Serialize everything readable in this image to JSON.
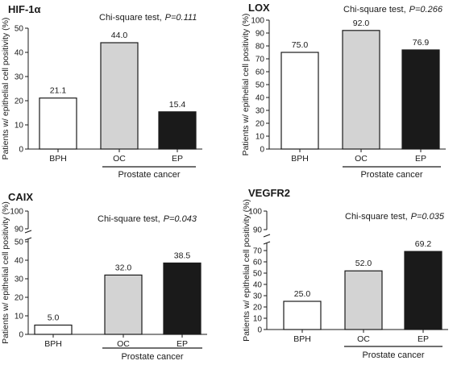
{
  "chart_data": [
    {
      "type": "bar",
      "title": "HIF-1α",
      "ylabel": "Patients w/ epithelial cell positivity (%)",
      "test_label": "Chi-square test,",
      "p_label": "P=0.111",
      "categories": [
        "BPH",
        "OC",
        "EP"
      ],
      "values": [
        21.1,
        44.0,
        15.4
      ],
      "value_labels": [
        "21.1",
        "44.0",
        "15.4"
      ],
      "bar_colors": [
        "#ffffff",
        "#d3d3d3",
        "#1a1a1a"
      ],
      "group_label": "Prostate cancer",
      "ylim": [
        0,
        50
      ],
      "yticks": [
        "0",
        "10",
        "20",
        "30",
        "40",
        "50"
      ],
      "axis_break": false
    },
    {
      "type": "bar",
      "title": "LOX",
      "ylabel": "Patients w/ epithelial cell positivity (%)",
      "test_label": "Chi-square test,",
      "p_label": "P=0.266",
      "categories": [
        "BPH",
        "OC",
        "EP"
      ],
      "values": [
        75.0,
        92.0,
        76.9
      ],
      "value_labels": [
        "75.0",
        "92.0",
        "76.9"
      ],
      "bar_colors": [
        "#ffffff",
        "#d3d3d3",
        "#1a1a1a"
      ],
      "group_label": "Prostate cancer",
      "ylim": [
        0,
        100
      ],
      "yticks": [
        "0",
        "10",
        "20",
        "30",
        "40",
        "50",
        "60",
        "70",
        "80",
        "90",
        "100"
      ],
      "axis_break": false
    },
    {
      "type": "bar",
      "title": "CAIX",
      "ylabel": "Patients w/ epithelial cell positivity (%)",
      "test_label": "Chi-square test,",
      "p_label": "P=0.043",
      "categories": [
        "BPH",
        "OC",
        "EP"
      ],
      "values": [
        5.0,
        32.0,
        38.5
      ],
      "value_labels": [
        "5.0",
        "32.0",
        "38.5"
      ],
      "bar_colors": [
        "#ffffff",
        "#d3d3d3",
        "#1a1a1a"
      ],
      "group_label": "Prostate cancer",
      "ylim": [
        0,
        50
      ],
      "yticks": [
        "0",
        "10",
        "20",
        "30",
        "40",
        "50"
      ],
      "axis_break": true,
      "upper_ticks": [
        "90",
        "100"
      ]
    },
    {
      "type": "bar",
      "title": "VEGFR2",
      "ylabel": "Patients w/ epithelial cell positivity (%)",
      "test_label": "Chi-square test,",
      "p_label": "P=0.035",
      "categories": [
        "BPH",
        "OC",
        "EP"
      ],
      "values": [
        25.0,
        52.0,
        69.2
      ],
      "value_labels": [
        "25.0",
        "52.0",
        "69.2"
      ],
      "bar_colors": [
        "#ffffff",
        "#d3d3d3",
        "#1a1a1a"
      ],
      "group_label": "Prostate cancer",
      "ylim": [
        0,
        70
      ],
      "yticks": [
        "0",
        "10",
        "20",
        "30",
        "40",
        "50",
        "60",
        "70"
      ],
      "axis_break": true,
      "upper_ticks": [
        "90",
        "100"
      ]
    }
  ]
}
